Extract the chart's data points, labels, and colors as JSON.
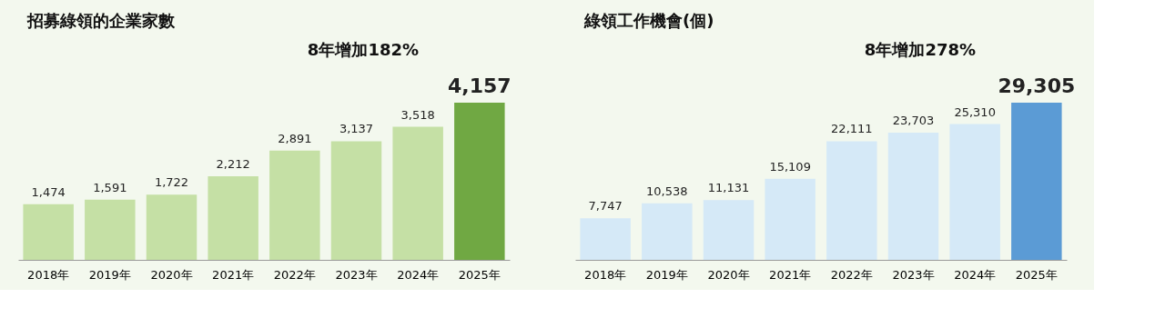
{
  "chart_data": [
    {
      "type": "bar",
      "title": "招募綠領的企業家數",
      "annotations": [
        "8年增加182%"
      ],
      "categories": [
        "2018年",
        "2019年",
        "2020年",
        "2021年",
        "2022年",
        "2023年",
        "2024年",
        "2025年"
      ],
      "values": [
        1474,
        1591,
        1722,
        2212,
        2891,
        3137,
        3518,
        4157
      ],
      "value_labels": [
        "1,474",
        "1,591",
        "1,722",
        "2,212",
        "2,891",
        "3,137",
        "3,518",
        "4,157"
      ],
      "colors": [
        "#c5e0a5",
        "#c5e0a5",
        "#c5e0a5",
        "#c5e0a5",
        "#c5e0a5",
        "#c5e0a5",
        "#c5e0a5",
        "#70a843"
      ]
    },
    {
      "type": "bar",
      "title": "綠領工作機會(個)",
      "annotations": [
        "8年增加278%"
      ],
      "categories": [
        "2018年",
        "2019年",
        "2020年",
        "2021年",
        "2022年",
        "2023年",
        "2024年",
        "2025年"
      ],
      "values": [
        7747,
        10538,
        11131,
        15109,
        22111,
        23703,
        25310,
        29305
      ],
      "value_labels": [
        "7,747",
        "10,538",
        "11,131",
        "15,109",
        "22,111",
        "23,703",
        "25,310",
        "29,305"
      ],
      "colors": [
        "#d5e9f7",
        "#d5e9f7",
        "#d5e9f7",
        "#d5e9f7",
        "#d5e9f7",
        "#d5e9f7",
        "#d5e9f7",
        "#5b9bd5"
      ]
    }
  ]
}
